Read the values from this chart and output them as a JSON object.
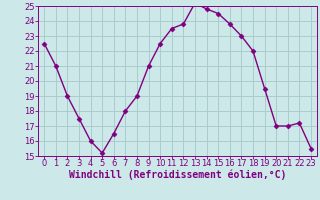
{
  "x": [
    0,
    1,
    2,
    3,
    4,
    5,
    6,
    7,
    8,
    9,
    10,
    11,
    12,
    13,
    14,
    15,
    16,
    17,
    18,
    19,
    20,
    21,
    22,
    23
  ],
  "y": [
    22.5,
    21.0,
    19.0,
    17.5,
    16.0,
    15.2,
    16.5,
    18.0,
    19.0,
    21.0,
    22.5,
    23.5,
    23.8,
    25.2,
    24.8,
    24.5,
    23.8,
    23.0,
    22.0,
    19.5,
    17.0,
    17.0,
    17.2,
    15.5
  ],
  "line_color": "#800080",
  "marker": "D",
  "marker_size": 2.5,
  "bg_color": "#cce8e8",
  "grid_color": "#aacccc",
  "xlabel": "Windchill (Refroidissement éolien,°C)",
  "xlabel_color": "#800080",
  "tick_color": "#800080",
  "ylim": [
    15,
    25
  ],
  "xlim": [
    -0.5,
    23.5
  ],
  "yticks": [
    15,
    16,
    17,
    18,
    19,
    20,
    21,
    22,
    23,
    24,
    25
  ],
  "xticks": [
    0,
    1,
    2,
    3,
    4,
    5,
    6,
    7,
    8,
    9,
    10,
    11,
    12,
    13,
    14,
    15,
    16,
    17,
    18,
    19,
    20,
    21,
    22,
    23
  ],
  "tick_fontsize": 6,
  "xlabel_fontsize": 7
}
